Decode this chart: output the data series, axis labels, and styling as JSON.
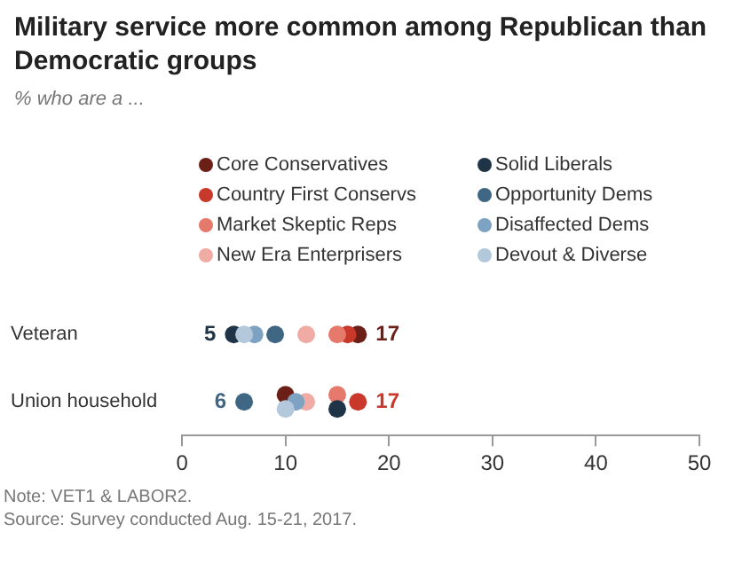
{
  "chart_data": {
    "type": "scatter",
    "title": "Military service more common among Republican than Democratic groups",
    "subtitle": "% who are a ...",
    "categories": [
      "Veteran",
      "Union household"
    ],
    "orientation": "horizontal",
    "xlim": [
      0,
      50
    ],
    "xticks": [
      0,
      10,
      20,
      30,
      40,
      50
    ],
    "grid": false,
    "legend": "top",
    "marker": "circle",
    "series": [
      {
        "name": "Core Conservatives",
        "color": "#6b1f17",
        "values": [
          17,
          10
        ],
        "value_labels": [
          "17",
          null
        ]
      },
      {
        "name": "Country First Conservs",
        "color": "#c8392b",
        "values": [
          16,
          17
        ],
        "value_labels": [
          null,
          "17"
        ]
      },
      {
        "name": "Market Skeptic Reps",
        "color": "#e57a6c",
        "values": [
          15,
          15
        ],
        "value_labels": [
          null,
          null
        ]
      },
      {
        "name": "New Era Enterprisers",
        "color": "#f0aba4",
        "values": [
          12,
          12
        ],
        "value_labels": [
          null,
          null
        ]
      },
      {
        "name": "Solid Liberals",
        "color": "#1f3447",
        "values": [
          5,
          15
        ],
        "value_labels": [
          "5",
          null
        ]
      },
      {
        "name": "Opportunity Dems",
        "color": "#3f6682",
        "values": [
          9,
          6
        ],
        "value_labels": [
          null,
          "6"
        ]
      },
      {
        "name": "Disaffected Dems",
        "color": "#7ea3c2",
        "values": [
          7,
          11
        ],
        "value_labels": [
          null,
          null
        ]
      },
      {
        "name": "Devout & Diverse",
        "color": "#b3c8db",
        "values": [
          6,
          10
        ],
        "value_labels": [
          null,
          null
        ]
      }
    ],
    "annotations": [
      "Note: VET1 & LABOR2.",
      "Source: Survey conducted Aug. 15-21, 2017."
    ]
  }
}
